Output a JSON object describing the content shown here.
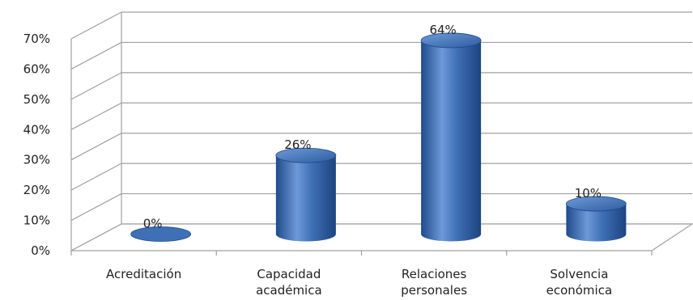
{
  "chart_data": {
    "type": "bar",
    "style": "3d-cylinder",
    "categories": [
      [
        "Acreditación"
      ],
      [
        "Capacidad",
        "académica"
      ],
      [
        "Relaciones",
        "personales"
      ],
      [
        "Solvencia",
        "económica"
      ]
    ],
    "values": [
      0,
      26,
      64,
      10
    ],
    "data_labels": [
      "0%",
      "26%",
      "64%",
      "10%"
    ],
    "ylim": [
      0,
      70
    ],
    "yticks": [
      "0%",
      "10%",
      "20%",
      "30%",
      "40%",
      "50%",
      "60%",
      "70%"
    ],
    "grid": true,
    "legend": "none",
    "colors": {
      "bar": "#3f6fb5",
      "bar_dark": "#1f4a8c",
      "bar_light": "#7aa3dc",
      "grid": "#a0a0a0"
    }
  }
}
